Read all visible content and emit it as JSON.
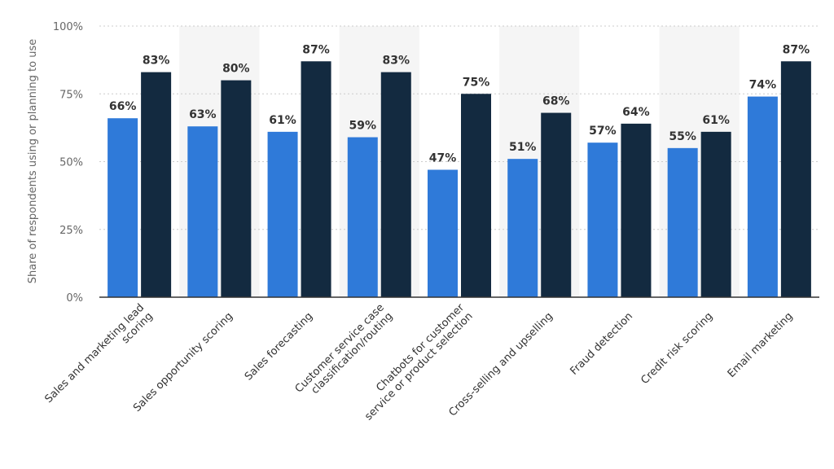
{
  "chart_data": {
    "type": "bar",
    "ylabel": "Share of respondents using or planning to use",
    "ylim": [
      0,
      100
    ],
    "yticks": [
      0,
      25,
      50,
      75,
      100
    ],
    "ytick_labels": [
      "0%",
      "25%",
      "50%",
      "75%",
      "100%"
    ],
    "grid": true,
    "categories": [
      [
        "Sales and marketing lead",
        "scoring"
      ],
      [
        "Sales opportunity scoring"
      ],
      [
        "Sales forecasting"
      ],
      [
        "Customer service case",
        "classification/routing"
      ],
      [
        "Chatbots for customer",
        "service or product selection"
      ],
      [
        "Cross-selling and upselling"
      ],
      [
        "Fraud detection"
      ],
      [
        "Credit risk scoring"
      ],
      [
        "Email marketing"
      ]
    ],
    "series": [
      {
        "color": "#2f7ad9",
        "values": [
          66,
          63,
          61,
          59,
          47,
          51,
          57,
          55,
          74
        ],
        "labels": [
          "66%",
          "63%",
          "61%",
          "59%",
          "47%",
          "51%",
          "57%",
          "55%",
          "74%"
        ]
      },
      {
        "color": "#132a40",
        "values": [
          83,
          80,
          87,
          83,
          75,
          68,
          64,
          61,
          87
        ],
        "labels": [
          "83%",
          "80%",
          "87%",
          "83%",
          "75%",
          "68%",
          "64%",
          "61%",
          "87%"
        ]
      }
    ],
    "band_color": "#f5f5f5"
  }
}
